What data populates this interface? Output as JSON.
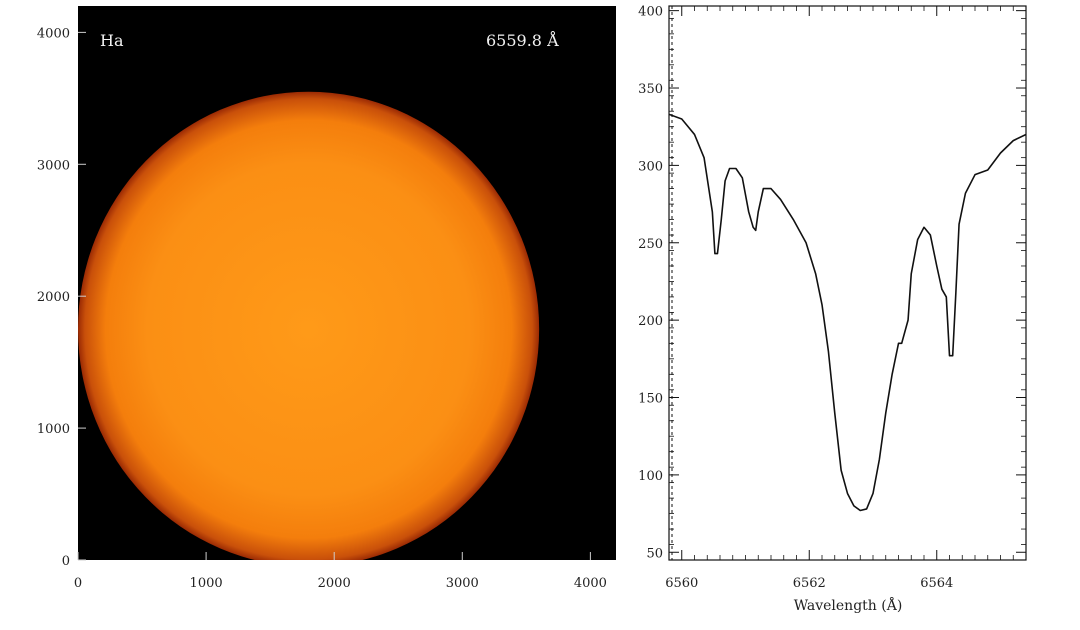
{
  "image_panel": {
    "label_left": "Ha",
    "label_right": "6559.8 Å",
    "xlim": [
      0,
      4200
    ],
    "ylim": [
      0,
      4200
    ],
    "x_ticks": [
      0,
      1000,
      2000,
      3000,
      4000
    ],
    "y_ticks": [
      0,
      1000,
      2000,
      3000,
      4000
    ],
    "disk_center": [
      1800,
      1750
    ],
    "disk_radius": 1800,
    "colors": {
      "background": "#000000",
      "disk_core": "#ff9a18",
      "disk_mid": "#f47e0c",
      "disk_limb": "#9a2a04"
    }
  },
  "chart_data": {
    "type": "line",
    "xlabel": "Wavelength (Å)",
    "ylabel": "",
    "xlim": [
      6559.8,
      6565.4
    ],
    "ylim": [
      45,
      403
    ],
    "x_ticks": [
      6560,
      6562,
      6564
    ],
    "y_ticks": [
      50,
      100,
      150,
      200,
      250,
      300,
      350,
      400
    ],
    "series": [
      {
        "x": [
          6559.8,
          6560.0,
          6560.2,
          6560.35,
          6560.48,
          6560.52,
          6560.56,
          6560.62,
          6560.68,
          6560.75,
          6560.85,
          6560.95,
          6561.05,
          6561.12,
          6561.16,
          6561.2,
          6561.28,
          6561.4,
          6561.55,
          6561.75,
          6561.95,
          6562.1,
          6562.2,
          6562.3,
          6562.4,
          6562.5,
          6562.6,
          6562.7,
          6562.8,
          6562.9,
          6563.0,
          6563.1,
          6563.2,
          6563.3,
          6563.4,
          6563.45,
          6563.55,
          6563.6,
          6563.7,
          6563.8,
          6563.9,
          6564.0,
          6564.08,
          6564.15,
          6564.2,
          6564.25,
          6564.3,
          6564.35,
          6564.45,
          6564.6,
          6564.8,
          6565.0,
          6565.2,
          6565.4
        ],
        "y": [
          333,
          330,
          320,
          305,
          270,
          243,
          243,
          265,
          290,
          298,
          298,
          292,
          270,
          260,
          258,
          270,
          285,
          285,
          278,
          265,
          250,
          230,
          210,
          180,
          140,
          103,
          88,
          80,
          77,
          78,
          88,
          110,
          140,
          165,
          185,
          185,
          200,
          230,
          252,
          260,
          255,
          235,
          220,
          215,
          177,
          177,
          218,
          262,
          282,
          294,
          297,
          308,
          316,
          320
        ]
      }
    ]
  }
}
